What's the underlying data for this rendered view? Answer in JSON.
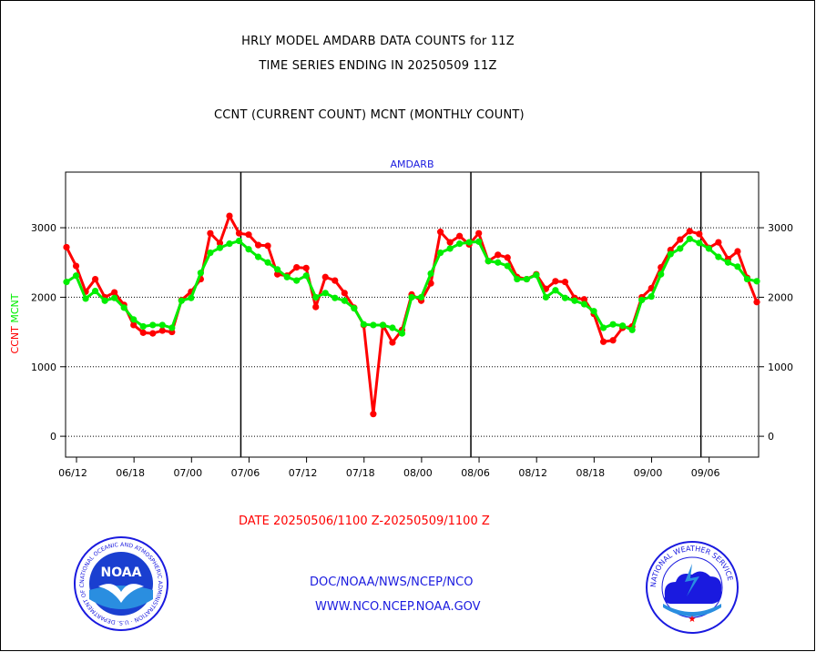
{
  "header": {
    "line1": "HRLY MODEL AMDARB DATA COUNTS for 11Z",
    "line2": "TIME SERIES ENDING IN 20250509 11Z",
    "line3": "CCNT (CURRENT COUNT) MCNT (MONTHLY COUNT)"
  },
  "footer": {
    "date_range": "DATE 20250506/1100 Z-20250509/1100 Z",
    "link1": "DOC/NOAA/NWS/NCEP/NCO",
    "link2": "WWW.NCO.NCEP.NOAA.GOV"
  },
  "logos": {
    "noaa": "NOAA",
    "noaa_ring": "NATIONAL OCEANIC AND ATMOSPHERIC ADMINISTRATION · U.S. DEPARTMENT OF COMMERCE",
    "nws_ring": "NATIONAL WEATHER SERVICE"
  },
  "colors": {
    "ccnt": "#ff0000",
    "mcnt": "#00ee00",
    "title_blue": "#1a1adf"
  },
  "chart_data": {
    "type": "line",
    "title": "AMDARB",
    "ylabel_parts": [
      {
        "text": "CCNT",
        "color": "#ff0000"
      },
      {
        "text": "MCNT",
        "color": "#00ee00"
      }
    ],
    "x_tick_labels": [
      "06/12",
      "06/18",
      "07/00",
      "07/06",
      "07/12",
      "07/18",
      "08/00",
      "08/06",
      "08/12",
      "08/18",
      "09/00",
      "09/06"
    ],
    "y_ticks": [
      0,
      1000,
      2000,
      3000
    ],
    "ylim": [
      -300,
      3800
    ],
    "grid": "dotted horizontal at y ticks",
    "series": [
      {
        "name": "CCNT",
        "color": "#ff0000",
        "values": [
          2720,
          2450,
          2080,
          2260,
          2000,
          2070,
          1890,
          1600,
          1490,
          1480,
          1520,
          1500,
          1960,
          2080,
          2260,
          2920,
          2780,
          3170,
          2920,
          2900,
          2750,
          2740,
          2330,
          2310,
          2430,
          2420,
          1860,
          2290,
          2240,
          2060,
          1850,
          1600,
          320,
          1600,
          1350,
          1530,
          2040,
          1950,
          2200,
          2940,
          2790,
          2880,
          2760,
          2920,
          2520,
          2610,
          2570,
          2290,
          2260,
          2330,
          2120,
          2230,
          2220,
          1990,
          1970,
          1760,
          1360,
          1380,
          1560,
          1580,
          2000,
          2130,
          2430,
          2680,
          2830,
          2950,
          2910,
          2710,
          2790,
          2550,
          2660,
          2280,
          1930
        ]
      },
      {
        "name": "MCNT",
        "color": "#00ee00",
        "values": [
          2220,
          2310,
          1980,
          2090,
          1950,
          1990,
          1850,
          1680,
          1580,
          1600,
          1600,
          1560,
          1950,
          1990,
          2350,
          2640,
          2710,
          2770,
          2810,
          2690,
          2580,
          2500,
          2400,
          2290,
          2240,
          2310,
          2000,
          2060,
          1990,
          1950,
          1840,
          1610,
          1600,
          1600,
          1560,
          1480,
          2000,
          2000,
          2340,
          2640,
          2700,
          2770,
          2790,
          2800,
          2520,
          2500,
          2450,
          2260,
          2260,
          2320,
          2000,
          2100,
          1990,
          1950,
          1900,
          1800,
          1560,
          1610,
          1590,
          1530,
          1960,
          2010,
          2330,
          2620,
          2700,
          2840,
          2780,
          2700,
          2580,
          2500,
          2440,
          2260,
          2230
        ]
      }
    ]
  }
}
